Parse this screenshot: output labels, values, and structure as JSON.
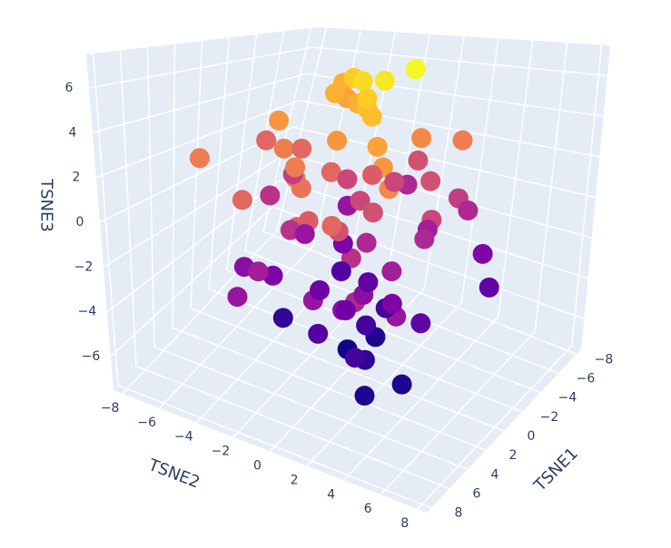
{
  "chart_data": {
    "type": "scatter3d",
    "colorscale": "Plasma",
    "marker_size": 22,
    "xaxis_title": "TSNE1",
    "yaxis_title": "TSNE2",
    "zaxis_title": "TSNE3",
    "xlim": [
      -8.5,
      8.5
    ],
    "ylim": [
      -8.5,
      8.5
    ],
    "zlim": [
      -7.5,
      7.5
    ],
    "xticks": [
      {
        "value": -8,
        "label": "−8"
      },
      {
        "value": -6,
        "label": "−6"
      },
      {
        "value": -4,
        "label": "−4"
      },
      {
        "value": -2,
        "label": "−2"
      },
      0,
      2,
      4,
      6,
      8
    ],
    "yticks": [
      {
        "value": -8,
        "label": "−8"
      },
      {
        "value": -6,
        "label": "−6"
      },
      {
        "value": -4,
        "label": "−4"
      },
      {
        "value": -2,
        "label": "−2"
      },
      0,
      2,
      4,
      6,
      8
    ],
    "zticks": [
      {
        "value": -6,
        "label": "−6"
      },
      {
        "value": -4,
        "label": "−4"
      },
      {
        "value": -2,
        "label": "−2"
      },
      0,
      2,
      4,
      6
    ],
    "x": [
      -5,
      -3,
      -1,
      1,
      3,
      5,
      -4,
      -2,
      0,
      2,
      4,
      6,
      -6,
      -3,
      0,
      3,
      6,
      -5,
      -2,
      1,
      4,
      -4,
      -1,
      2,
      5,
      -6,
      -3,
      0,
      3,
      6,
      -5,
      -2,
      1,
      4,
      -3,
      0,
      3,
      -4,
      -1,
      2,
      5,
      -2,
      1,
      4,
      -3,
      0,
      3,
      -1,
      2,
      0,
      -7,
      -5,
      -2,
      1,
      4,
      7,
      -6,
      -3,
      0,
      3,
      6,
      -4,
      -1,
      2,
      5,
      -5,
      -2,
      1,
      4,
      0,
      -3,
      2,
      -1,
      1,
      3,
      -2,
      2,
      0,
      1,
      -1
    ],
    "y": [
      -4,
      -2,
      0,
      2,
      4,
      -5,
      -3,
      -1,
      1,
      3,
      5,
      -2,
      0,
      2,
      -4,
      -1,
      1,
      3,
      -6,
      -3,
      0,
      2,
      4,
      -2,
      1,
      3,
      -5,
      -1,
      2,
      4,
      -3,
      0,
      3,
      5,
      -2,
      1,
      -4,
      2,
      0,
      -3,
      1,
      3,
      -1,
      2,
      -2,
      4,
      0,
      -3,
      1,
      2,
      -1,
      3,
      -4,
      0,
      2,
      -2,
      4,
      -3,
      1,
      -1,
      3,
      0,
      -5,
      2,
      -2,
      5,
      1,
      -3,
      3,
      0,
      -2,
      2,
      1,
      3,
      2,
      0,
      4,
      1,
      2,
      3
    ],
    "z": [
      5,
      6,
      6.5,
      5.5,
      4,
      3,
      4.5,
      5,
      5.5,
      4.5,
      3.5,
      2,
      1,
      3.5,
      4,
      2.5,
      1.5,
      0,
      2,
      3,
      2.5,
      1,
      0.5,
      -0.5,
      1.5,
      -1,
      0,
      2,
      -0.5,
      -1,
      -2,
      1.5,
      -1.5,
      -2,
      0.5,
      -1,
      -2.5,
      -1.5,
      0.5,
      -3,
      -2,
      -1,
      -3.5,
      -2.5,
      -3,
      -4,
      -4.5,
      -2,
      -3.5,
      7,
      -1,
      3,
      2,
      4,
      1,
      -2,
      -3,
      5,
      6,
      3,
      2,
      0.5,
      -0.5,
      -2.5,
      -1.5,
      -4,
      -5,
      -5.5,
      -6,
      -6.5,
      -4.5,
      -5.5,
      -6,
      -3,
      -5,
      -4,
      -6,
      -5,
      1,
      7.5
    ]
  }
}
